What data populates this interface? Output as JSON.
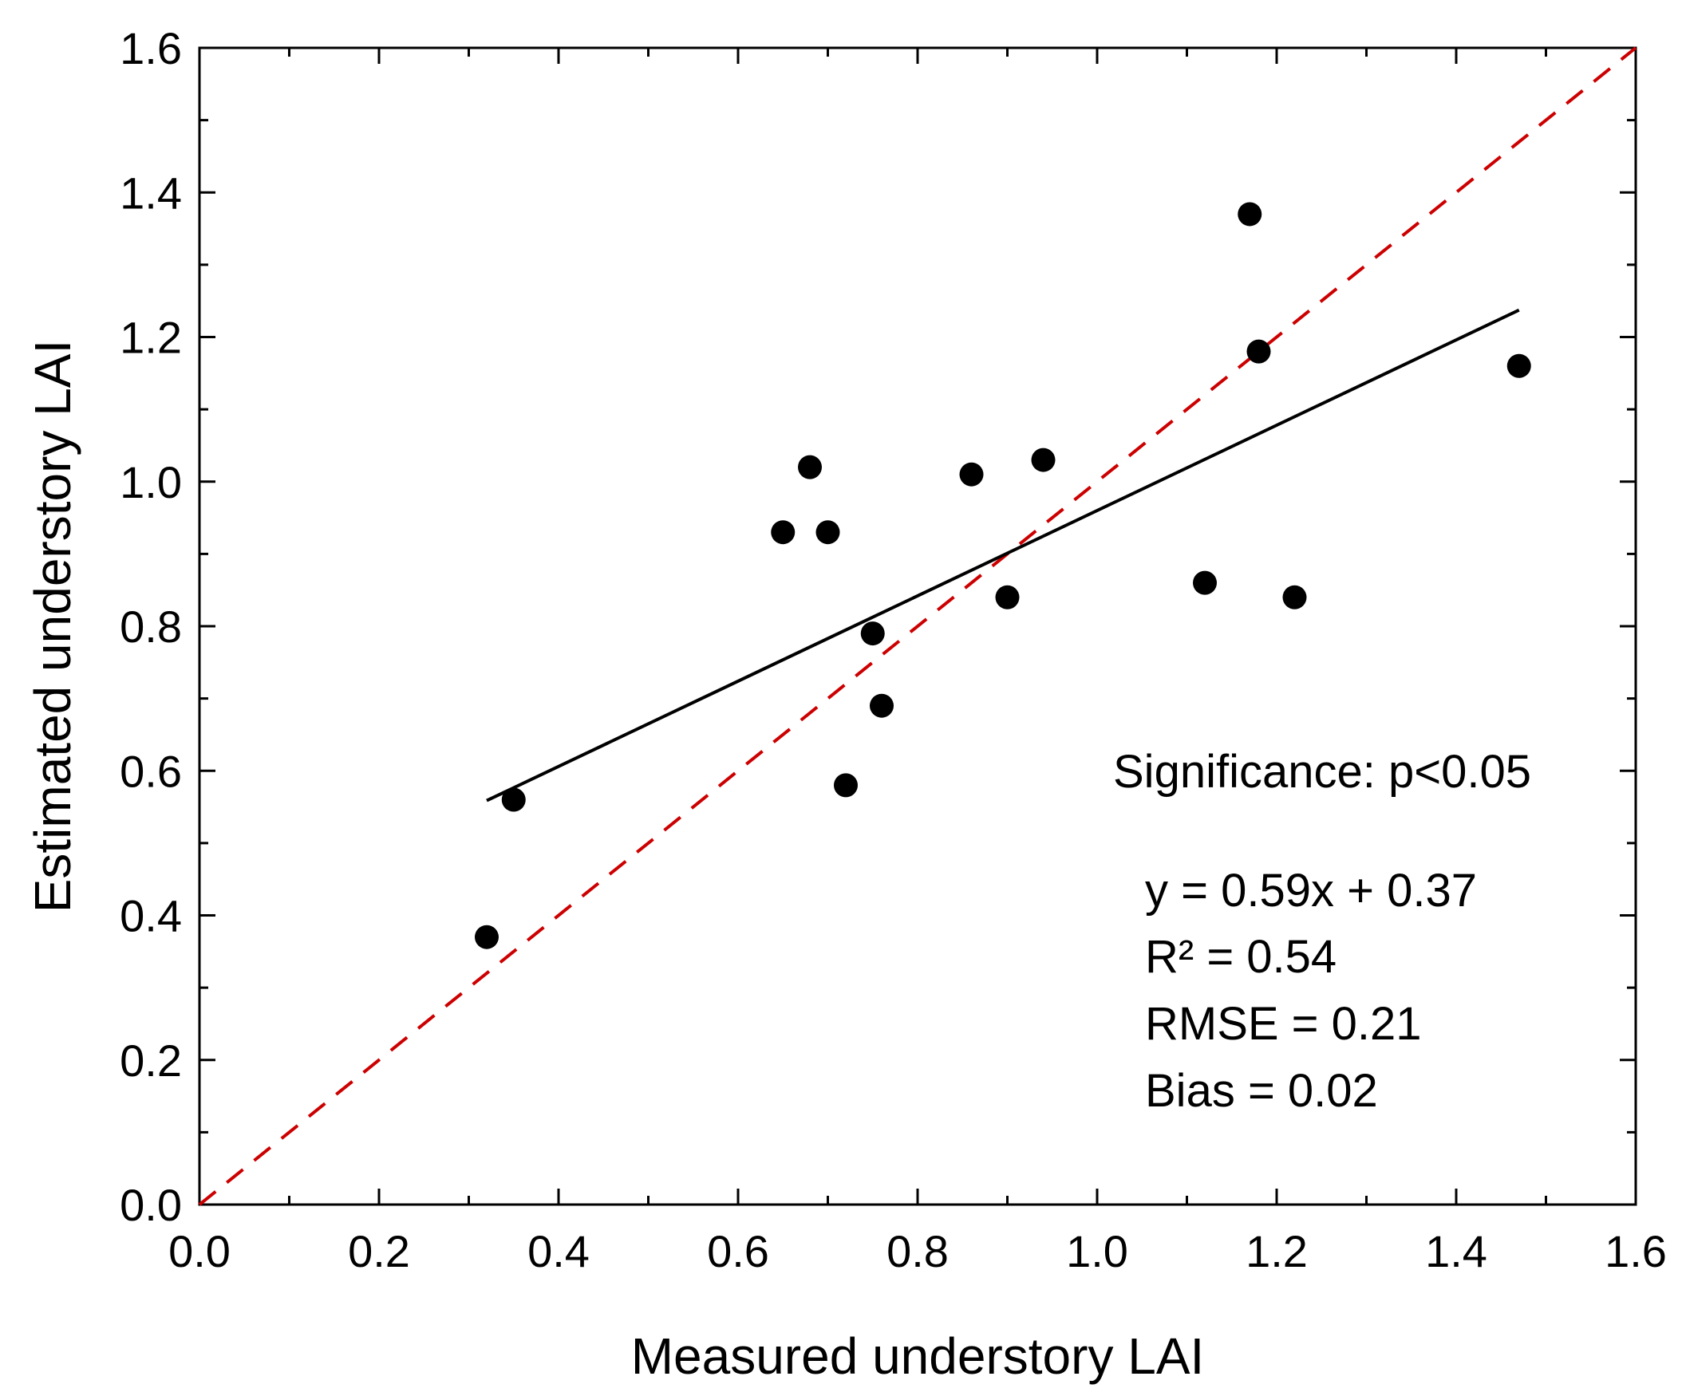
{
  "chart_data": {
    "type": "scatter",
    "xlabel": "Measured understory LAI",
    "ylabel": "Estimated understory LAI",
    "xlim": [
      0.0,
      1.6
    ],
    "ylim": [
      0.0,
      1.6
    ],
    "x_ticks": [
      "0.0",
      "0.2",
      "0.4",
      "0.6",
      "0.8",
      "1.0",
      "1.2",
      "1.4",
      "1.6"
    ],
    "y_ticks": [
      "0.0",
      "0.2",
      "0.4",
      "0.6",
      "0.8",
      "1.0",
      "1.2",
      "1.4",
      "1.6"
    ],
    "x_tick_values": [
      0.0,
      0.2,
      0.4,
      0.6,
      0.8,
      1.0,
      1.2,
      1.4,
      1.6
    ],
    "y_tick_values": [
      0.0,
      0.2,
      0.4,
      0.6,
      0.8,
      1.0,
      1.2,
      1.4,
      1.6
    ],
    "points": [
      {
        "x": 0.32,
        "y": 0.37
      },
      {
        "x": 0.35,
        "y": 0.56
      },
      {
        "x": 0.65,
        "y": 0.93
      },
      {
        "x": 0.68,
        "y": 1.02
      },
      {
        "x": 0.7,
        "y": 0.93
      },
      {
        "x": 0.72,
        "y": 0.58
      },
      {
        "x": 0.75,
        "y": 0.79
      },
      {
        "x": 0.76,
        "y": 0.69
      },
      {
        "x": 0.86,
        "y": 1.01
      },
      {
        "x": 0.9,
        "y": 0.84
      },
      {
        "x": 0.94,
        "y": 1.03
      },
      {
        "x": 1.12,
        "y": 0.86
      },
      {
        "x": 1.17,
        "y": 1.37
      },
      {
        "x": 1.18,
        "y": 1.18
      },
      {
        "x": 1.22,
        "y": 0.84
      },
      {
        "x": 1.47,
        "y": 1.16
      }
    ],
    "regression": {
      "slope": 0.59,
      "intercept": 0.37,
      "x_range": [
        0.32,
        1.47
      ]
    },
    "identity_line": {
      "from": [
        0.0,
        0.0
      ],
      "to": [
        1.6,
        1.6
      ],
      "style": "dashed",
      "color": "#cc0000"
    },
    "annotations": {
      "significance": "Significance: p<0.05",
      "equation": "y = 0.59x + 0.37",
      "r2": "R² = 0.54",
      "rmse": "RMSE = 0.21",
      "bias": "Bias = 0.02"
    }
  },
  "colors": {
    "points": "#000000",
    "fit_line": "#000000",
    "identity_line": "#cc0000",
    "axes": "#000000"
  }
}
